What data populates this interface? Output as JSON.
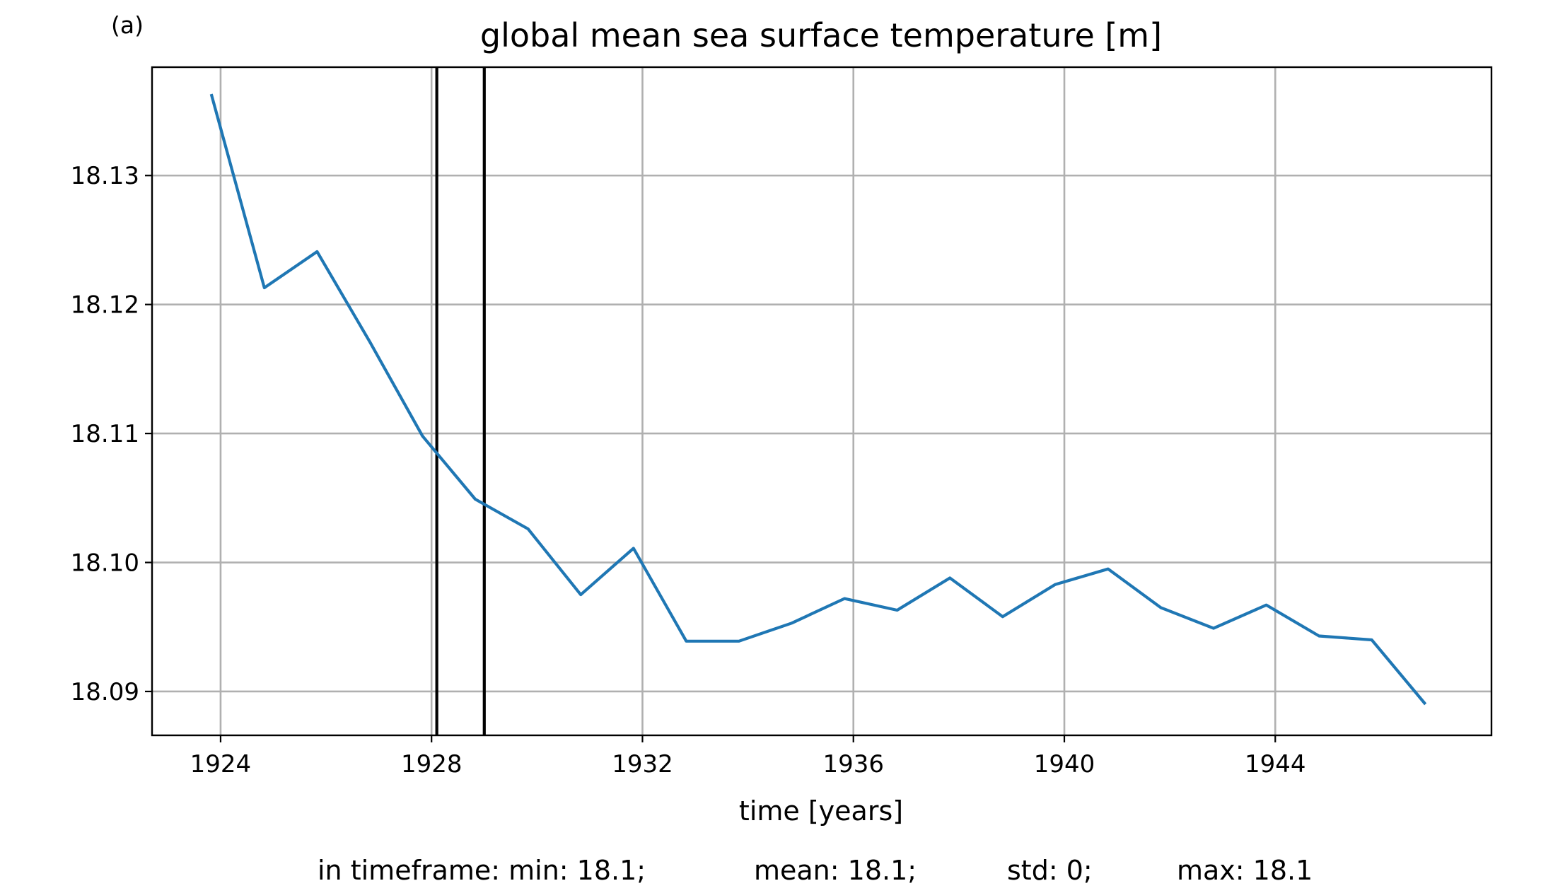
{
  "panel_label": "(a)",
  "stats": {
    "min": "in timeframe: min: 18.1;",
    "mean": "mean: 18.1;",
    "std": "std: 0;",
    "max": "max: 18.1"
  },
  "colors": {
    "series": "#1f77b4",
    "markers": "#000000",
    "grid": "#b0b0b0"
  },
  "chart_data": {
    "type": "line",
    "title": "global mean sea surface temperature [m]",
    "xlabel": "time [years]",
    "ylabel": "",
    "xlim": [
      1922.7,
      1948.1
    ],
    "ylim": [
      18.0866,
      18.1384
    ],
    "grid": true,
    "legend": "none",
    "x_ticks": [
      1924,
      1928,
      1932,
      1936,
      1940,
      1944
    ],
    "x_tick_labels": [
      "1924",
      "1928",
      "1932",
      "1936",
      "1940",
      "1944"
    ],
    "y_ticks": [
      18.09,
      18.1,
      18.11,
      18.12,
      18.13
    ],
    "y_tick_labels": [
      "18.09",
      "18.10",
      "18.11",
      "18.12",
      "18.13"
    ],
    "vertical_markers": [
      1928.1,
      1929.0
    ],
    "series": [
      {
        "x": [
          1923.83,
          1924.83,
          1925.83,
          1926.83,
          1927.83,
          1928.83,
          1929.83,
          1930.83,
          1931.83,
          1932.83,
          1933.83,
          1934.83,
          1935.83,
          1936.83,
          1937.83,
          1938.83,
          1939.83,
          1940.83,
          1941.83,
          1942.83,
          1943.83,
          1944.83,
          1945.83,
          1946.83
        ],
        "values": [
          18.1362,
          18.1213,
          18.1241,
          18.1171,
          18.1098,
          18.1049,
          18.1026,
          18.0975,
          18.1011,
          18.0939,
          18.0939,
          18.0953,
          18.0972,
          18.0963,
          18.0988,
          18.0958,
          18.0983,
          18.0995,
          18.0965,
          18.0949,
          18.0967,
          18.0943,
          18.094,
          18.0891
        ]
      }
    ]
  }
}
